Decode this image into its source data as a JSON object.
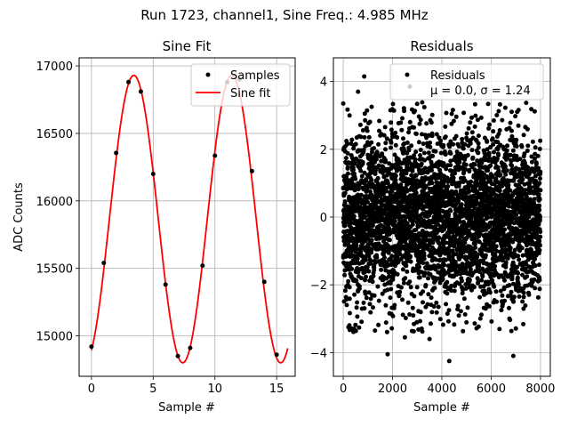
{
  "figure": {
    "suptitle": "Run 1723, channel1, Sine Freq.: 4.985 MHz"
  },
  "chart_data": [
    {
      "type": "scatter",
      "title": "Sine Fit",
      "xlabel": "Sample #",
      "ylabel": "ADC Counts",
      "xlim": [
        -1,
        16.5
      ],
      "ylim": [
        14700,
        17060
      ],
      "xticks": [
        "0",
        "5",
        "10",
        "15"
      ],
      "xtick_values": [
        0,
        5,
        10,
        15
      ],
      "yticks": [
        "15000",
        "15500",
        "16000",
        "16500",
        "17000"
      ],
      "ytick_values": [
        15000,
        15500,
        16000,
        16500,
        17000
      ],
      "grid": true,
      "legend_position": "top-right",
      "series": [
        {
          "name": "Samples",
          "kind": "scatter",
          "color": "#000000",
          "x": [
            0,
            1,
            2,
            3,
            4,
            5,
            6,
            7,
            8,
            9,
            10,
            11,
            12,
            13,
            14,
            15
          ],
          "y": [
            14920,
            15540,
            16355,
            16880,
            16810,
            16200,
            15380,
            14850,
            14910,
            15520,
            16335,
            16880,
            16900,
            16220,
            15400,
            14860
          ]
        },
        {
          "name": "Sine fit",
          "kind": "line",
          "color": "#ff0000",
          "model": {
            "mean": 15865,
            "amplitude": 1065,
            "period": 7.93,
            "phase_shift": 1.45,
            "x_range": [
              0,
              15.9
            ]
          }
        }
      ]
    },
    {
      "type": "scatter",
      "title": "Residuals",
      "xlabel": "Sample #",
      "ylabel": "",
      "xlim": [
        -400,
        8400
      ],
      "ylim": [
        -4.7,
        4.7
      ],
      "xticks": [
        "0",
        "2000",
        "4000",
        "6000",
        "8000"
      ],
      "xtick_values": [
        0,
        2000,
        4000,
        6000,
        8000
      ],
      "yticks": [
        "−4",
        "−2",
        "0",
        "2",
        "4"
      ],
      "ytick_values": [
        -4,
        -2,
        0,
        2,
        4
      ],
      "grid": true,
      "legend_position": "top-right",
      "legend_lines": [
        "Residuals",
        "μ = 0.0, σ = 1.24"
      ],
      "series": [
        {
          "name": "Residuals",
          "kind": "scatter",
          "color": "#000000",
          "stats": {
            "mu": 0.0,
            "sigma": 1.24,
            "n": 8000
          },
          "outliers": {
            "x": [
              850,
              2700,
              4300,
              1800,
              6900,
              0,
              600,
              2500,
              3500
            ],
            "y": [
              4.15,
              3.85,
              -4.25,
              -4.05,
              -4.1,
              3.35,
              3.7,
              -3.55,
              -3.6
            ]
          }
        }
      ]
    }
  ]
}
